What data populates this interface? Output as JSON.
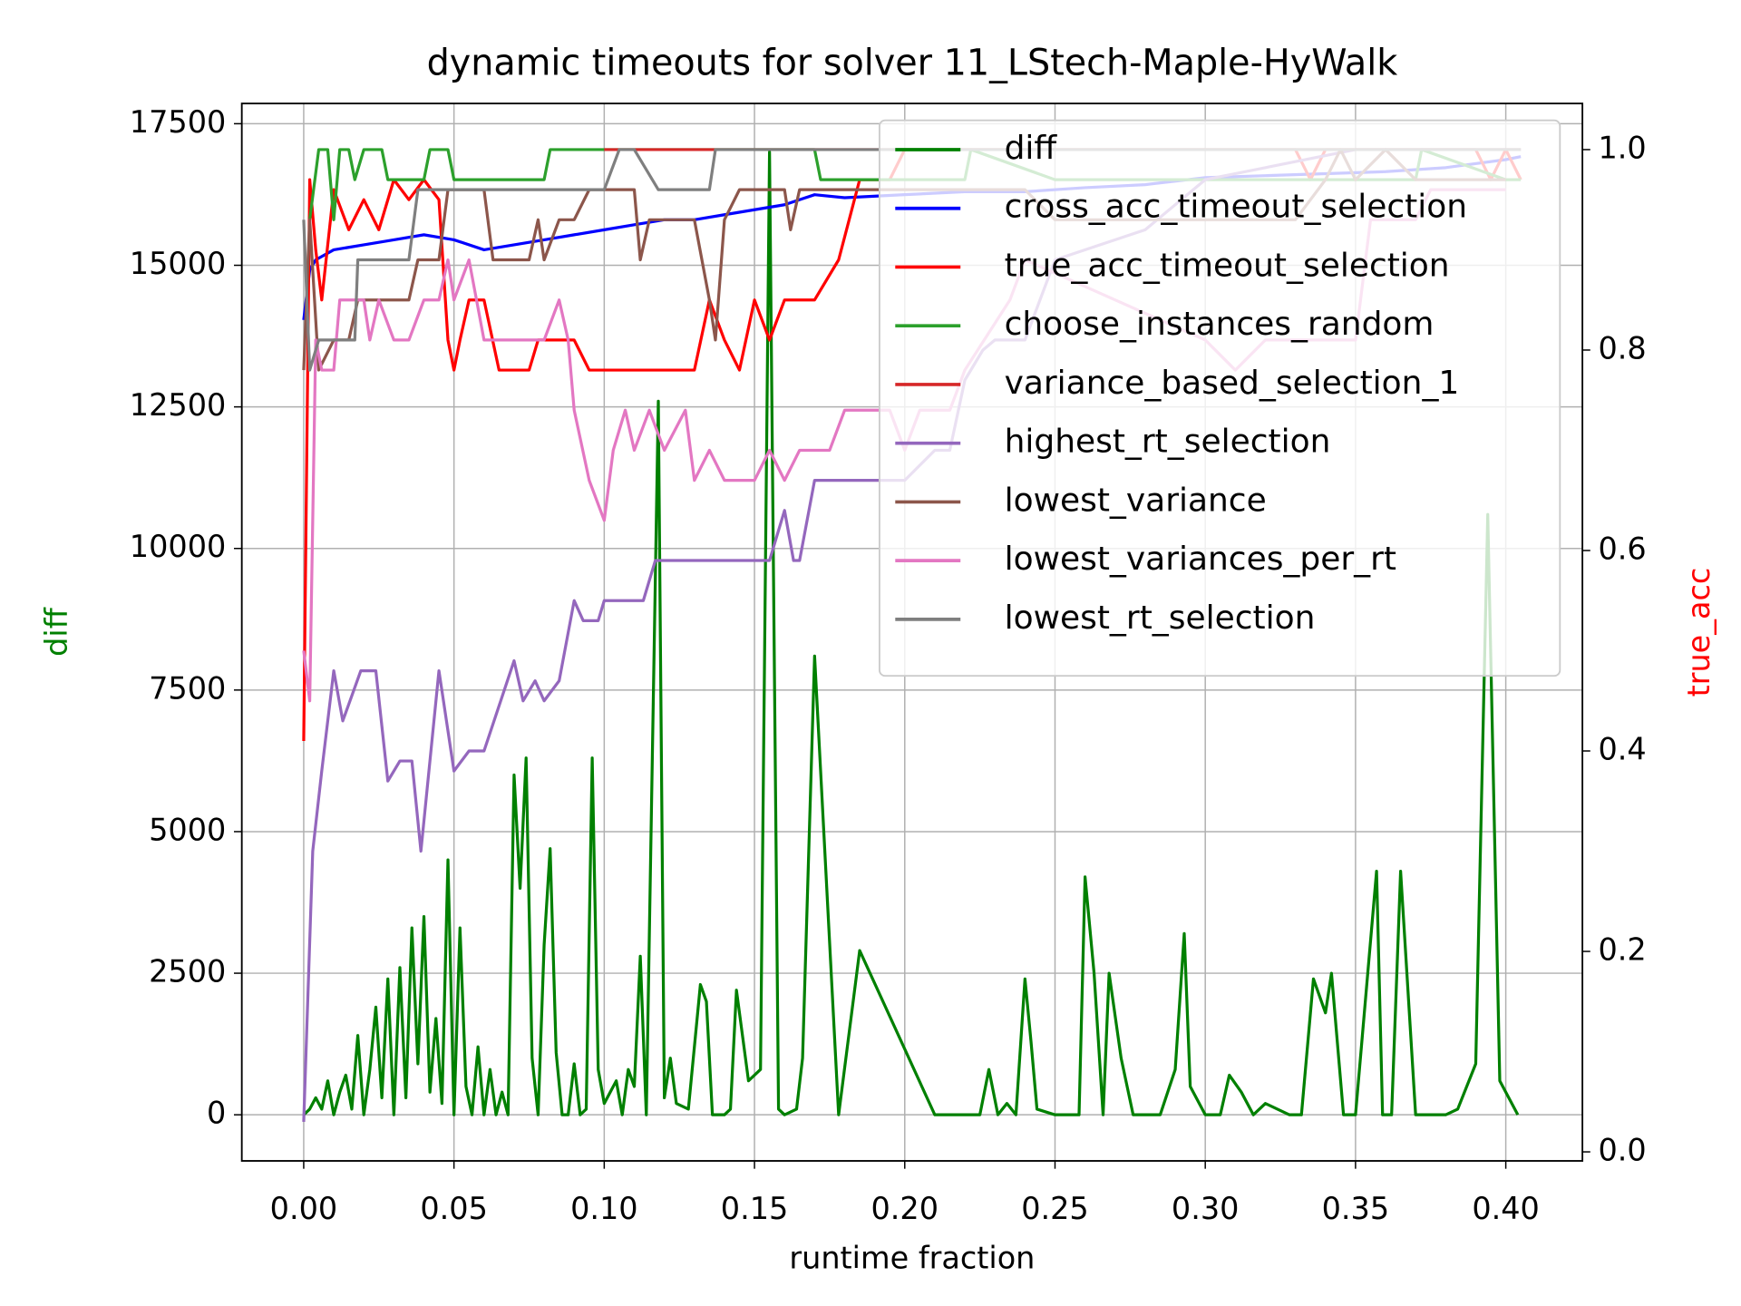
{
  "chart_data": {
    "type": "line",
    "title": "dynamic timeouts for solver 11_LStech-Maple-HyWalk",
    "xlabel": "runtime fraction",
    "ylabel": "diff",
    "y2label": "true_acc",
    "ylabel_color": "#008000",
    "y2label_color": "#ff0000",
    "xlim": [
      -0.0206,
      0.4255
    ],
    "ylim": [
      -814,
      17857
    ],
    "y2lim": [
      -0.009,
      1.046
    ],
    "xticks": [
      {
        "value": 0,
        "label": "0.00"
      },
      {
        "value": 0.05,
        "label": "0.05"
      },
      {
        "value": 0.1,
        "label": "0.10"
      },
      {
        "value": 0.15,
        "label": "0.15"
      },
      {
        "value": 0.2,
        "label": "0.20"
      },
      {
        "value": 0.25,
        "label": "0.25"
      },
      {
        "value": 0.3,
        "label": "0.30"
      },
      {
        "value": 0.35,
        "label": "0.35"
      },
      {
        "value": 0.4,
        "label": "0.40"
      }
    ],
    "yticks": [
      0,
      2500,
      5000,
      7500,
      10000,
      12500,
      15000,
      17500
    ],
    "y2ticks": [
      {
        "value": 0,
        "label": "0.0"
      },
      {
        "value": 0.2,
        "label": "0.2"
      },
      {
        "value": 0.4,
        "label": "0.4"
      },
      {
        "value": 0.6,
        "label": "0.6"
      },
      {
        "value": 0.8,
        "label": "0.8"
      },
      {
        "value": 1,
        "label": "1.0"
      }
    ],
    "grid": true,
    "legend": "upper right",
    "series": [
      {
        "name": "diff",
        "color": "#008000",
        "axis": "y",
        "x": [
          0,
          0.002,
          0.004,
          0.006,
          0.008,
          0.01,
          0.012,
          0.014,
          0.016,
          0.018,
          0.02,
          0.022,
          0.024,
          0.026,
          0.028,
          0.03,
          0.032,
          0.034,
          0.036,
          0.038,
          0.04,
          0.042,
          0.044,
          0.046,
          0.048,
          0.05,
          0.052,
          0.054,
          0.056,
          0.058,
          0.06,
          0.062,
          0.064,
          0.066,
          0.068,
          0.07,
          0.072,
          0.074,
          0.076,
          0.078,
          0.08,
          0.082,
          0.084,
          0.086,
          0.088,
          0.09,
          0.092,
          0.094,
          0.096,
          0.098,
          0.1,
          0.104,
          0.106,
          0.108,
          0.11,
          0.112,
          0.114,
          0.118,
          0.12,
          0.122,
          0.124,
          0.128,
          0.132,
          0.134,
          0.136,
          0.14,
          0.142,
          0.144,
          0.148,
          0.152,
          0.155,
          0.158,
          0.16,
          0.164,
          0.166,
          0.17,
          0.178,
          0.185,
          0.21,
          0.225,
          0.228,
          0.231,
          0.234,
          0.237,
          0.24,
          0.242,
          0.244,
          0.25,
          0.258,
          0.26,
          0.263,
          0.266,
          0.268,
          0.272,
          0.276,
          0.28,
          0.285,
          0.29,
          0.293,
          0.295,
          0.3,
          0.305,
          0.308,
          0.312,
          0.316,
          0.32,
          0.324,
          0.328,
          0.332,
          0.336,
          0.34,
          0.342,
          0.346,
          0.35,
          0.357,
          0.359,
          0.362,
          0.365,
          0.37,
          0.376,
          0.38,
          0.384,
          0.39,
          0.394,
          0.398,
          0.404
        ],
        "values": [
          0,
          100,
          300,
          100,
          600,
          0,
          400,
          700,
          100,
          1400,
          0,
          800,
          1900,
          300,
          2400,
          0,
          2600,
          300,
          3300,
          900,
          3500,
          400,
          1700,
          200,
          4500,
          0,
          3300,
          500,
          0,
          1200,
          0,
          800,
          0,
          400,
          0,
          6000,
          4000,
          6300,
          1000,
          0,
          3000,
          4700,
          1100,
          0,
          0,
          900,
          0,
          100,
          6300,
          800,
          200,
          600,
          0,
          800,
          500,
          2800,
          0,
          12600,
          300,
          1000,
          200,
          100,
          2300,
          2000,
          0,
          0,
          100,
          2200,
          600,
          800,
          17000,
          100,
          0,
          100,
          1000,
          8100,
          0,
          2900,
          0,
          0,
          800,
          0,
          200,
          0,
          2400,
          1300,
          100,
          0,
          0,
          4200,
          2500,
          0,
          2500,
          1000,
          0,
          0,
          0,
          800,
          3200,
          500,
          0,
          0,
          700,
          400,
          0,
          200,
          100,
          0,
          0,
          2400,
          1800,
          2500,
          0,
          0,
          4300,
          0,
          0,
          4300,
          0,
          0,
          0,
          100,
          900,
          10600,
          600,
          0
        ]
      },
      {
        "name": "cross_acc_timeout_selection",
        "color": "#0000ff",
        "axis": "y2",
        "x": [
          0,
          0.002,
          0.004,
          0.01,
          0.02,
          0.03,
          0.04,
          0.05,
          0.06,
          0.07,
          0.08,
          0.09,
          0.1,
          0.11,
          0.12,
          0.13,
          0.14,
          0.15,
          0.16,
          0.17,
          0.18,
          0.2,
          0.22,
          0.24,
          0.26,
          0.28,
          0.3,
          0.32,
          0.34,
          0.36,
          0.38,
          0.4,
          0.405
        ],
        "values": [
          0.83,
          0.88,
          0.89,
          0.9,
          0.905,
          0.91,
          0.915,
          0.91,
          0.9,
          0.905,
          0.91,
          0.915,
          0.92,
          0.925,
          0.93,
          0.93,
          0.935,
          0.94,
          0.945,
          0.955,
          0.952,
          0.955,
          0.958,
          0.958,
          0.962,
          0.965,
          0.972,
          0.974,
          0.976,
          0.978,
          0.982,
          0.99,
          0.993
        ]
      },
      {
        "name": "true_acc_timeout_selection",
        "color": "#ff0000",
        "axis": "y2",
        "x": [
          0,
          0.002,
          0.004,
          0.006,
          0.01,
          0.015,
          0.02,
          0.025,
          0.03,
          0.035,
          0.04,
          0.045,
          0.048,
          0.05,
          0.052,
          0.055,
          0.06,
          0.065,
          0.075,
          0.078,
          0.09,
          0.095,
          0.13,
          0.135,
          0.14,
          0.145,
          0.15,
          0.155,
          0.16,
          0.17,
          0.178,
          0.185,
          0.195,
          0.2,
          0.25,
          0.3,
          0.33,
          0.335,
          0.34,
          0.39,
          0.395,
          0.4,
          0.405
        ],
        "values": [
          0.41,
          0.97,
          0.9,
          0.85,
          0.96,
          0.92,
          0.95,
          0.92,
          0.97,
          0.95,
          0.97,
          0.95,
          0.81,
          0.78,
          0.81,
          0.85,
          0.85,
          0.78,
          0.78,
          0.81,
          0.81,
          0.78,
          0.78,
          0.85,
          0.81,
          0.78,
          0.85,
          0.81,
          0.85,
          0.85,
          0.89,
          0.97,
          0.97,
          1.0,
          1.0,
          1.0,
          1.0,
          0.97,
          1.0,
          1.0,
          0.97,
          1.0,
          0.97
        ]
      },
      {
        "name": "choose_instances_random",
        "color": "#2ca02c",
        "axis": "y2",
        "x": [
          0.002,
          0.005,
          0.008,
          0.01,
          0.012,
          0.015,
          0.017,
          0.02,
          0.026,
          0.028,
          0.04,
          0.042,
          0.048,
          0.05,
          0.08,
          0.082,
          0.17,
          0.172,
          0.2,
          0.22,
          0.222,
          0.25,
          0.3,
          0.35,
          0.37,
          0.372,
          0.4,
          0.405
        ],
        "values": [
          0.93,
          1.0,
          1.0,
          0.93,
          1.0,
          1.0,
          0.97,
          1.0,
          1.0,
          0.97,
          0.97,
          1.0,
          1.0,
          0.97,
          0.97,
          1.0,
          1.0,
          0.97,
          0.97,
          0.97,
          1.0,
          0.97,
          0.97,
          0.97,
          0.97,
          1.0,
          0.97,
          0.97
        ]
      },
      {
        "name": "variance_based_selection_1",
        "color": "#d62728",
        "axis": "y2",
        "x": [
          0.1,
          0.11,
          0.2,
          0.3,
          0.405
        ],
        "values": [
          1.0,
          1.0,
          1.0,
          1.0,
          1.0
        ]
      },
      {
        "name": "highest_rt_selection",
        "color": "#9467bd",
        "axis": "y2",
        "x": [
          0,
          0.003,
          0.006,
          0.01,
          0.013,
          0.019,
          0.024,
          0.028,
          0.032,
          0.036,
          0.039,
          0.045,
          0.05,
          0.055,
          0.06,
          0.07,
          0.073,
          0.077,
          0.08,
          0.085,
          0.09,
          0.093,
          0.098,
          0.1,
          0.113,
          0.117,
          0.155,
          0.16,
          0.163,
          0.165,
          0.17,
          0.2,
          0.21,
          0.215,
          0.22,
          0.226,
          0.23,
          0.24,
          0.25,
          0.28,
          0.3,
          0.35,
          0.4,
          0.405
        ],
        "values": [
          0.03,
          0.3,
          0.38,
          0.48,
          0.43,
          0.48,
          0.48,
          0.37,
          0.39,
          0.39,
          0.3,
          0.48,
          0.38,
          0.4,
          0.4,
          0.49,
          0.45,
          0.47,
          0.45,
          0.47,
          0.55,
          0.53,
          0.53,
          0.55,
          0.55,
          0.59,
          0.59,
          0.64,
          0.59,
          0.59,
          0.67,
          0.67,
          0.7,
          0.7,
          0.77,
          0.8,
          0.81,
          0.81,
          0.89,
          0.92,
          0.97,
          1.0,
          1.0,
          1.0
        ]
      },
      {
        "name": "lowest_variance",
        "color": "#8c564b",
        "axis": "y2",
        "x": [
          0,
          0.002,
          0.005,
          0.01,
          0.015,
          0.018,
          0.035,
          0.038,
          0.045,
          0.048,
          0.06,
          0.063,
          0.075,
          0.078,
          0.08,
          0.085,
          0.09,
          0.095,
          0.11,
          0.112,
          0.115,
          0.13,
          0.135,
          0.137,
          0.14,
          0.145,
          0.16,
          0.162,
          0.165,
          0.24,
          0.25,
          0.33,
          0.34,
          0.345,
          0.35,
          0.36,
          0.37,
          0.4
        ],
        "values": [
          0.78,
          0.93,
          0.78,
          0.81,
          0.81,
          0.85,
          0.85,
          0.89,
          0.89,
          0.96,
          0.96,
          0.89,
          0.89,
          0.93,
          0.89,
          0.93,
          0.93,
          0.96,
          0.96,
          0.89,
          0.93,
          0.93,
          0.85,
          0.81,
          0.93,
          0.96,
          0.96,
          0.92,
          0.96,
          0.96,
          0.93,
          0.93,
          0.97,
          1.0,
          0.97,
          1.0,
          0.97,
          0.97
        ]
      },
      {
        "name": "lowest_variances_per_rt",
        "color": "#e377c2",
        "axis": "y2",
        "x": [
          0,
          0.002,
          0.004,
          0.006,
          0.01,
          0.012,
          0.02,
          0.022,
          0.025,
          0.03,
          0.035,
          0.04,
          0.045,
          0.048,
          0.05,
          0.055,
          0.06,
          0.08,
          0.085,
          0.088,
          0.09,
          0.095,
          0.1,
          0.103,
          0.107,
          0.11,
          0.115,
          0.12,
          0.127,
          0.13,
          0.135,
          0.14,
          0.15,
          0.155,
          0.16,
          0.165,
          0.175,
          0.18,
          0.195,
          0.2,
          0.205,
          0.215,
          0.22,
          0.235,
          0.24,
          0.3,
          0.31,
          0.32,
          0.35,
          0.355,
          0.37,
          0.375,
          0.4
        ],
        "values": [
          0.5,
          0.45,
          0.81,
          0.78,
          0.78,
          0.85,
          0.85,
          0.81,
          0.85,
          0.81,
          0.81,
          0.85,
          0.85,
          0.89,
          0.85,
          0.89,
          0.81,
          0.81,
          0.85,
          0.81,
          0.74,
          0.67,
          0.63,
          0.7,
          0.74,
          0.7,
          0.74,
          0.7,
          0.74,
          0.67,
          0.7,
          0.67,
          0.67,
          0.7,
          0.67,
          0.7,
          0.7,
          0.74,
          0.74,
          0.7,
          0.74,
          0.74,
          0.78,
          0.85,
          0.89,
          0.81,
          0.78,
          0.81,
          0.81,
          0.93,
          0.93,
          0.96,
          0.96
        ]
      },
      {
        "name": "lowest_rt_selection",
        "color": "#7f7f7f",
        "axis": "y2",
        "x": [
          0,
          0.002,
          0.005,
          0.017,
          0.018,
          0.035,
          0.038,
          0.1,
          0.105,
          0.11,
          0.118,
          0.135,
          0.137,
          0.405
        ],
        "values": [
          0.93,
          0.78,
          0.81,
          0.81,
          0.89,
          0.89,
          0.96,
          0.96,
          1.0,
          1.0,
          0.96,
          0.96,
          1.0,
          1.0
        ]
      }
    ]
  }
}
